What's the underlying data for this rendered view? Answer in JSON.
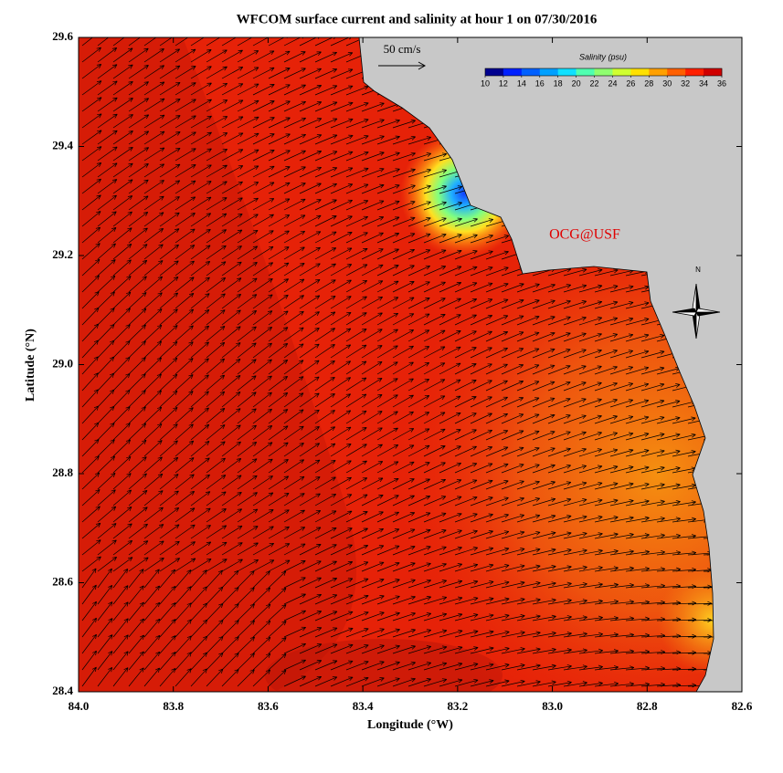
{
  "title": "WFCOM surface current and salinity at hour 1 on 07/30/2016",
  "map": {
    "xlabel": "Longitude (°W)",
    "ylabel": "Latitude (°N)",
    "xlim": [
      84,
      82.6
    ],
    "ylim": [
      28.4,
      29.6
    ],
    "xticks": [
      {
        "value": 84,
        "label": "84.0"
      },
      83.8,
      83.6,
      83.4,
      83.2,
      {
        "value": 83,
        "label": "83.0"
      },
      82.8,
      82.6
    ],
    "yticks": [
      28.4,
      28.6,
      28.8,
      {
        "value": 29,
        "label": "29.0"
      },
      29.2,
      29.4,
      29.6
    ]
  },
  "scale_label": "50 cm/s",
  "colorbar": {
    "label": "Salinity (psu)",
    "ticks": [
      10,
      12,
      14,
      16,
      18,
      20,
      22,
      24,
      26,
      28,
      30,
      32,
      34,
      36
    ],
    "colors": [
      "#00008f",
      "#0020ff",
      "#0060ff",
      "#00a0ff",
      "#10e0ff",
      "#50ffb0",
      "#90ff70",
      "#d0ff30",
      "#ffe000",
      "#ffa000",
      "#ff6000",
      "#ff2000",
      "#d00000"
    ]
  },
  "credit": "OCG@USF",
  "compass": "N"
}
